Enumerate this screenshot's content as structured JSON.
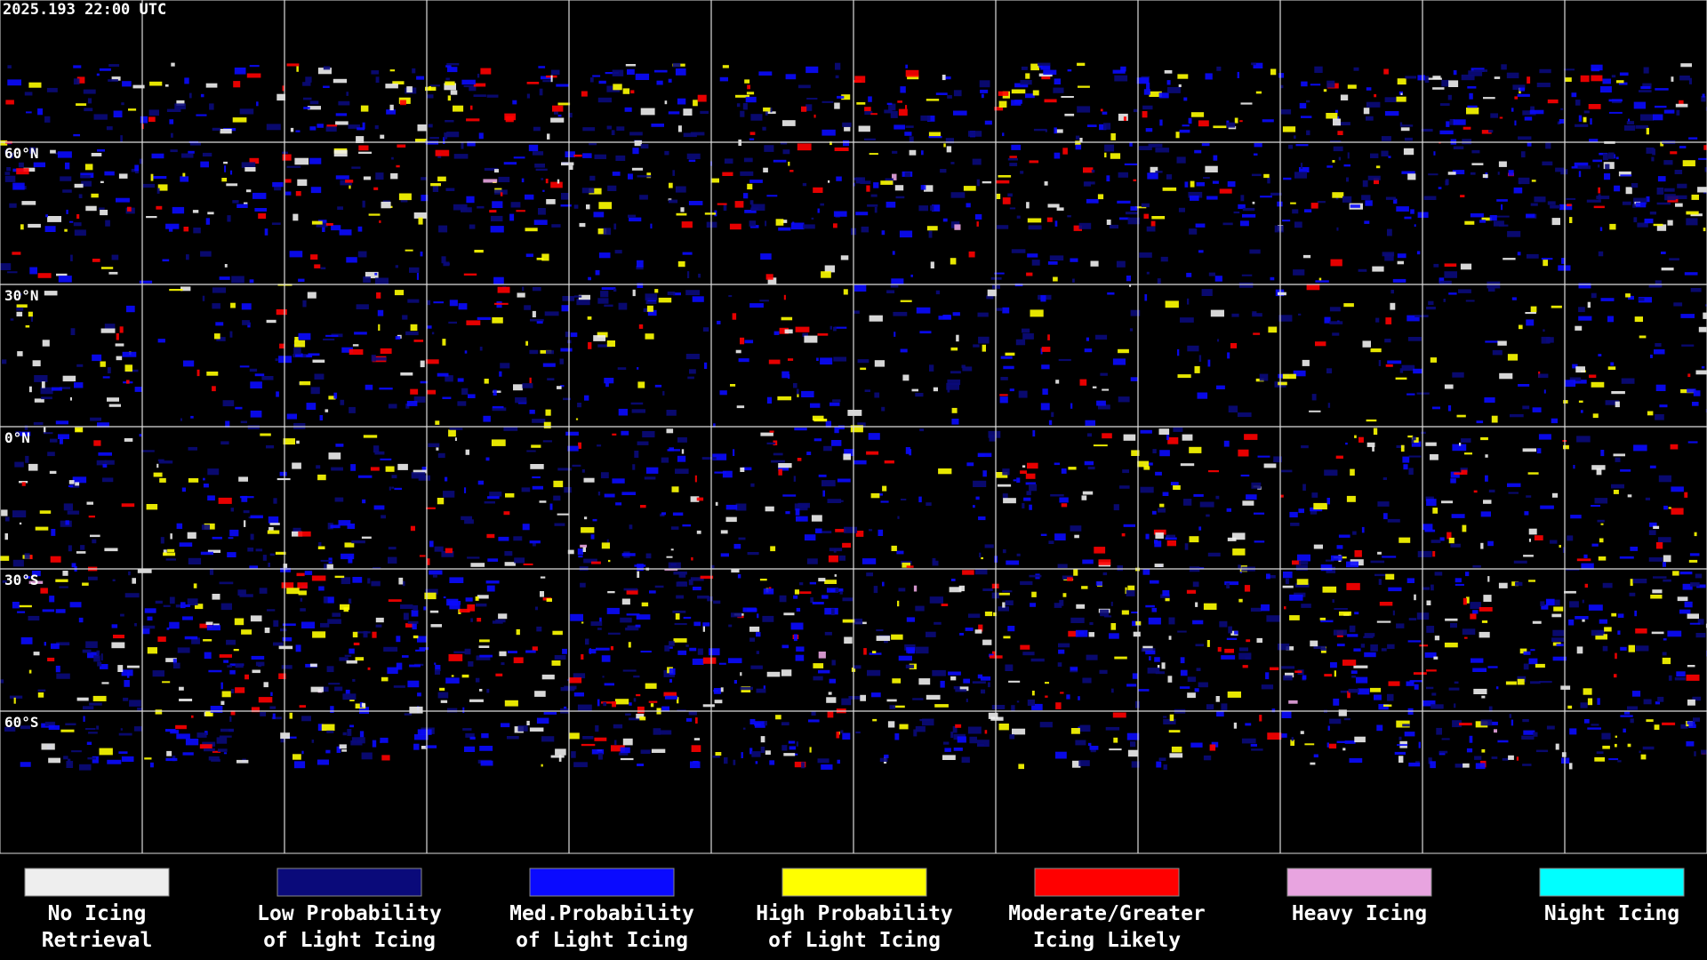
{
  "header": {
    "timestamp": "2025.193 22:00 UTC"
  },
  "map": {
    "latitude_labels": [
      "60°N",
      "30°N",
      "0°N",
      "30°S",
      "60°S"
    ]
  },
  "legend": {
    "items": [
      {
        "lines": [
          "No Icing",
          "Retrieval"
        ],
        "color": "#eeeeee"
      },
      {
        "lines": [
          "Low Probability",
          "of Light Icing"
        ],
        "color": "#0a0a7a"
      },
      {
        "lines": [
          "Med.Probability",
          "of Light Icing"
        ],
        "color": "#0a0aff"
      },
      {
        "lines": [
          "High Probability",
          "of Light Icing"
        ],
        "color": "#ffff00"
      },
      {
        "lines": [
          "Moderate/Greater",
          "Icing Likely"
        ],
        "color": "#ff0000"
      },
      {
        "lines": [
          "Heavy Icing"
        ],
        "color": "#e8a4e0"
      },
      {
        "lines": [
          "Night Icing"
        ],
        "color": "#00ffff"
      }
    ]
  }
}
